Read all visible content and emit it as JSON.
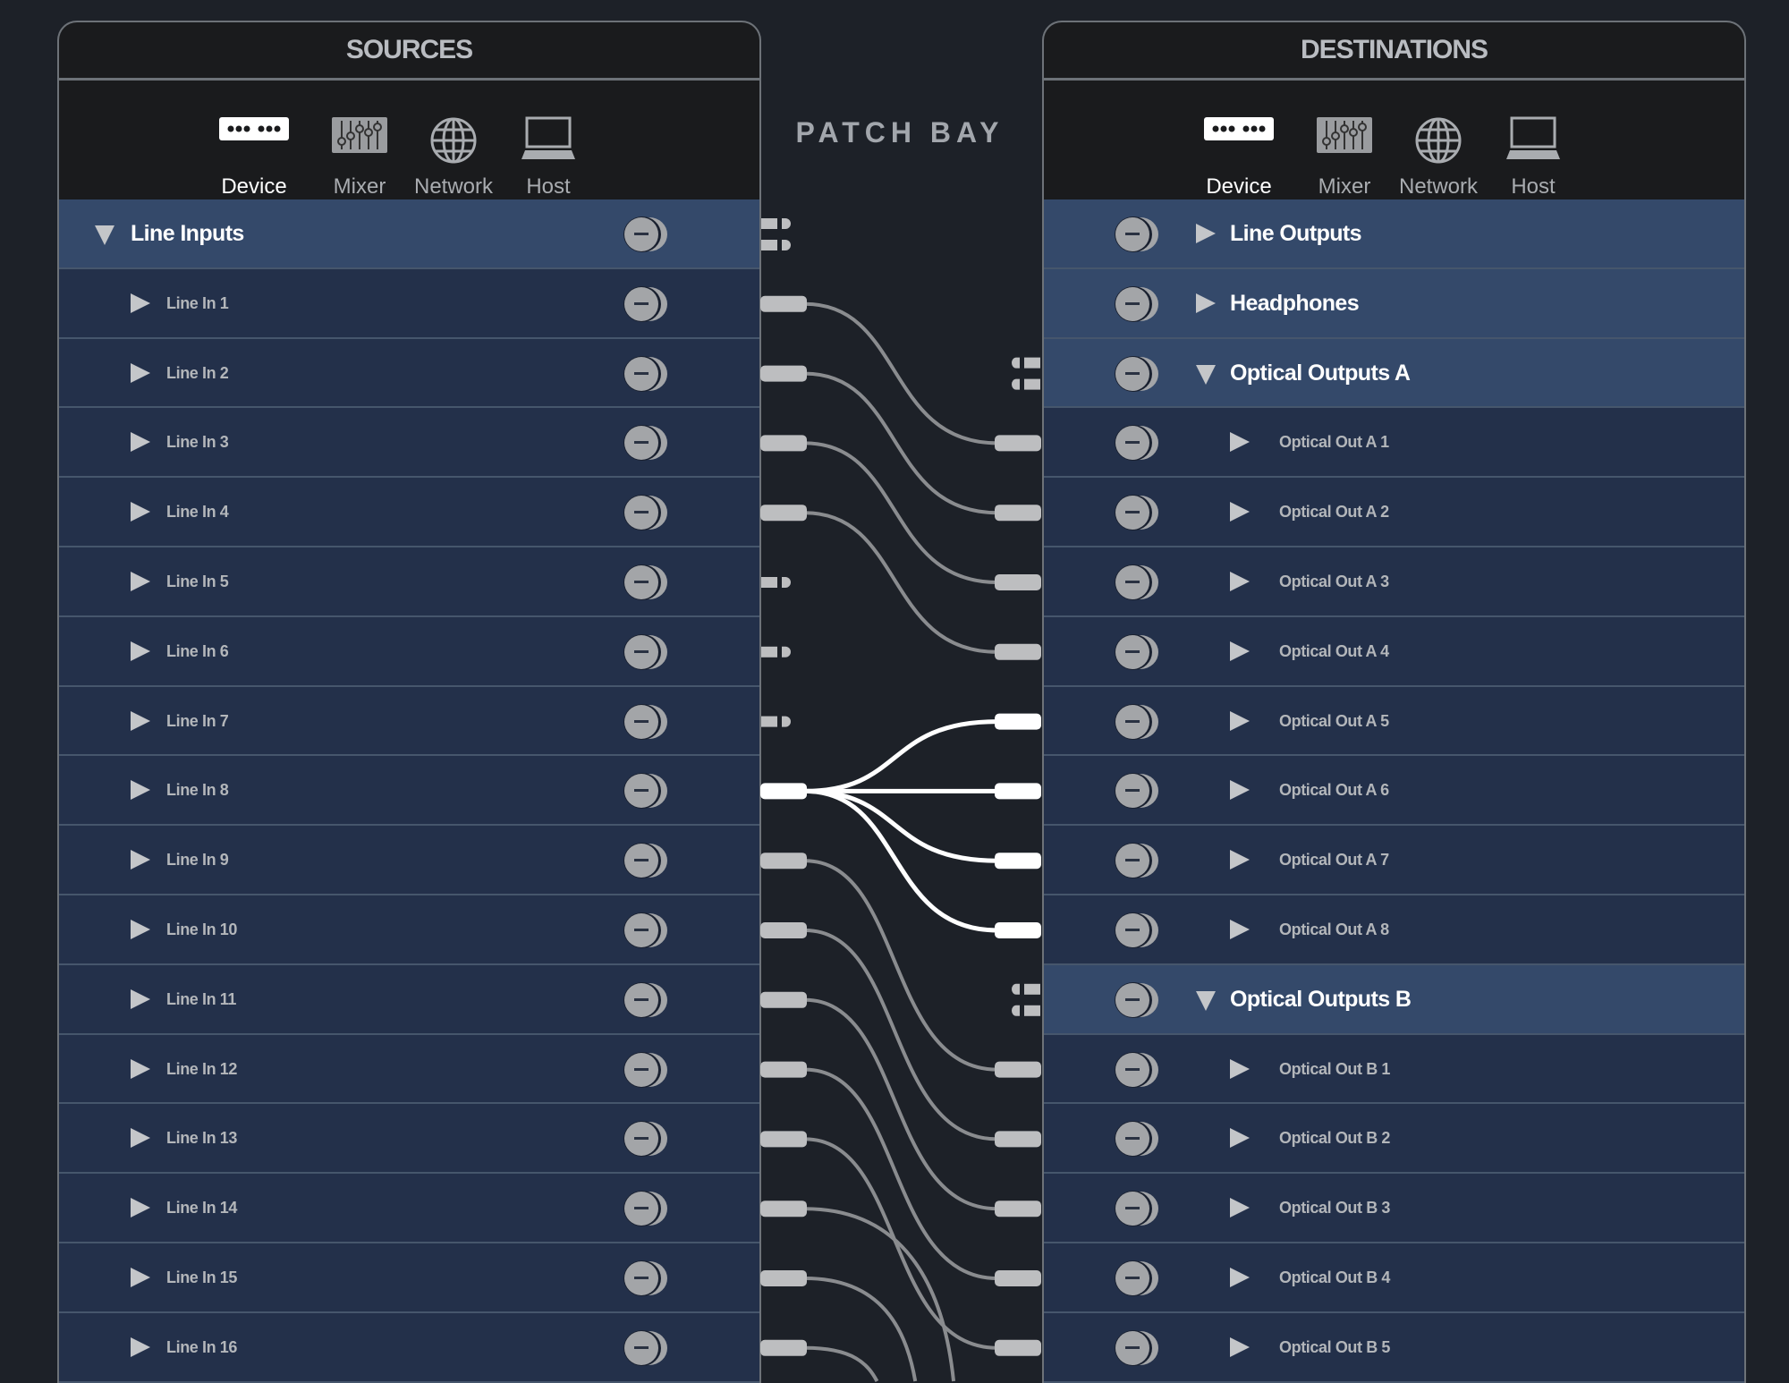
{
  "patch_bay_title": "PATCH BAY",
  "sources": {
    "title": "SOURCES",
    "tabs": [
      {
        "label": "Device",
        "icon": "device-icon",
        "active": true
      },
      {
        "label": "Mixer",
        "icon": "mixer-icon",
        "active": false
      },
      {
        "label": "Network",
        "icon": "globe-icon",
        "active": false
      },
      {
        "label": "Host",
        "icon": "laptop-icon",
        "active": false
      }
    ],
    "rows": [
      {
        "label": "Line Inputs",
        "type": "group",
        "expanded": true
      },
      {
        "label": "Line In 1",
        "type": "child"
      },
      {
        "label": "Line In 2",
        "type": "child"
      },
      {
        "label": "Line In 3",
        "type": "child"
      },
      {
        "label": "Line In 4",
        "type": "child"
      },
      {
        "label": "Line In 5",
        "type": "child"
      },
      {
        "label": "Line In 6",
        "type": "child"
      },
      {
        "label": "Line In 7",
        "type": "child"
      },
      {
        "label": "Line In 8",
        "type": "child"
      },
      {
        "label": "Line In 9",
        "type": "child"
      },
      {
        "label": "Line In 10",
        "type": "child"
      },
      {
        "label": "Line In 11",
        "type": "child"
      },
      {
        "label": "Line In 12",
        "type": "child"
      },
      {
        "label": "Line In 13",
        "type": "child"
      },
      {
        "label": "Line In 14",
        "type": "child"
      },
      {
        "label": "Line In 15",
        "type": "child"
      },
      {
        "label": "Line In 16",
        "type": "child"
      }
    ]
  },
  "destinations": {
    "title": "DESTINATIONS",
    "tabs": [
      {
        "label": "Device",
        "icon": "device-icon",
        "active": true
      },
      {
        "label": "Mixer",
        "icon": "mixer-icon",
        "active": false
      },
      {
        "label": "Network",
        "icon": "globe-icon",
        "active": false
      },
      {
        "label": "Host",
        "icon": "laptop-icon",
        "active": false
      }
    ],
    "rows": [
      {
        "label": "Line Outputs",
        "type": "group",
        "expanded": false
      },
      {
        "label": "Headphones",
        "type": "group",
        "expanded": false
      },
      {
        "label": "Optical Outputs A",
        "type": "group",
        "expanded": true
      },
      {
        "label": "Optical Out A 1",
        "type": "child"
      },
      {
        "label": "Optical Out A 2",
        "type": "child"
      },
      {
        "label": "Optical Out A 3",
        "type": "child"
      },
      {
        "label": "Optical Out A 4",
        "type": "child"
      },
      {
        "label": "Optical Out A 5",
        "type": "child"
      },
      {
        "label": "Optical Out A 6",
        "type": "child"
      },
      {
        "label": "Optical Out A 7",
        "type": "child"
      },
      {
        "label": "Optical Out A 8",
        "type": "child"
      },
      {
        "label": "Optical Outputs B",
        "type": "group",
        "expanded": true
      },
      {
        "label": "Optical Out B 1",
        "type": "child"
      },
      {
        "label": "Optical Out B 2",
        "type": "child"
      },
      {
        "label": "Optical Out B 3",
        "type": "child"
      },
      {
        "label": "Optical Out B 4",
        "type": "child"
      },
      {
        "label": "Optical Out B 5",
        "type": "child"
      }
    ]
  },
  "connections": [
    {
      "source": "Line In 1",
      "destination": "Optical Out A 1",
      "highlighted": false
    },
    {
      "source": "Line In 2",
      "destination": "Optical Out A 2",
      "highlighted": false
    },
    {
      "source": "Line In 3",
      "destination": "Optical Out A 3",
      "highlighted": false
    },
    {
      "source": "Line In 4",
      "destination": "Optical Out A 4",
      "highlighted": false
    },
    {
      "source": "Line In 8",
      "destination": "Optical Out A 5",
      "highlighted": true
    },
    {
      "source": "Line In 8",
      "destination": "Optical Out A 6",
      "highlighted": true
    },
    {
      "source": "Line In 8",
      "destination": "Optical Out A 7",
      "highlighted": true
    },
    {
      "source": "Line In 8",
      "destination": "Optical Out A 8",
      "highlighted": true
    },
    {
      "source": "Line In 9",
      "destination": "Optical Out B 1",
      "highlighted": false
    },
    {
      "source": "Line In 10",
      "destination": "Optical Out B 2",
      "highlighted": false
    },
    {
      "source": "Line In 11",
      "destination": "Optical Out B 3",
      "highlighted": false
    },
    {
      "source": "Line In 12",
      "destination": "Optical Out B 4",
      "highlighted": false
    },
    {
      "source": "Line In 13",
      "destination": "Optical Out B 5",
      "highlighted": false
    }
  ],
  "colors": {
    "cable": "#8a8c8f",
    "cable_highlight": "#ffffff",
    "plug": "#bdbec0",
    "group_row": "#34496a",
    "child_row": "#23304a"
  }
}
